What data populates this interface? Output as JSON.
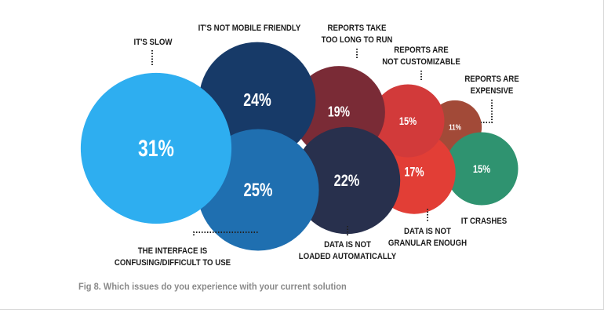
{
  "caption": "Fig 8. Which issues do you experience with your current solution",
  "chart_data": {
    "type": "bubble",
    "unit": "%",
    "items": [
      {
        "label": "IT'S SLOW",
        "value": 31,
        "display": "31%",
        "color": "#2eaef0"
      },
      {
        "label": "IT'S NOT MOBILE FRIENDLY",
        "value": 24,
        "display": "24%",
        "color": "#173a68"
      },
      {
        "label": "THE INTERFACE IS CONFUSING/DIFFICULT TO USE",
        "value": 25,
        "display": "25%",
        "color": "#1f6fb0"
      },
      {
        "label": "REPORTS TAKE TOO LONG TO RUN",
        "value": 19,
        "display": "19%",
        "color": "#7a2b36"
      },
      {
        "label": "DATA IS NOT LOADED AUTOMATICALLY",
        "value": 22,
        "display": "22%",
        "color": "#28304d"
      },
      {
        "label": "REPORTS ARE NOT CUSTOMIZABLE",
        "value": 15,
        "display": "15%",
        "color": "#d23a3a"
      },
      {
        "label": "DATA IS NOT GRANULAR ENOUGH",
        "value": 17,
        "display": "17%",
        "color": "#e23e36"
      },
      {
        "label": "REPORTS ARE EXPENSIVE",
        "value": 11,
        "display": "11%",
        "color": "#a24a38"
      },
      {
        "label": "IT CRASHES",
        "value": 15,
        "display": "15%",
        "color": "#2f9370"
      }
    ],
    "label_lines": [
      [
        "IT'S SLOW"
      ],
      [
        "IT'S NOT MOBILE FRIENDLY"
      ],
      [
        "THE INTERFACE IS",
        "CONFUSING/DIFFICULT TO USE"
      ],
      [
        "REPORTS TAKE",
        "TOO LONG TO RUN"
      ],
      [
        "DATA IS NOT",
        "LOADED AUTOMATICALLY"
      ],
      [
        "REPORTS ARE",
        "NOT CUSTOMIZABLE"
      ],
      [
        "DATA IS NOT",
        "GRANULAR ENOUGH"
      ],
      [
        "REPORTS ARE",
        "EXPENSIVE"
      ],
      [
        "IT CRASHES"
      ]
    ]
  }
}
